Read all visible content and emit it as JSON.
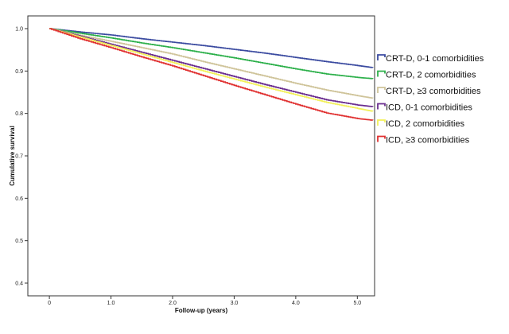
{
  "chart_data": {
    "type": "line",
    "title": "",
    "xlabel": "Follow-up (years)",
    "ylabel": "Cumulative survival",
    "xlim": [
      -0.35,
      5.28
    ],
    "ylim": [
      0.37,
      1.03
    ],
    "xticks": [
      0,
      1.0,
      2.0,
      3.0,
      4.0,
      5.0
    ],
    "xtick_labels": [
      "0",
      "1.0",
      "2.0",
      "3.0",
      "4.0",
      "5.0"
    ],
    "yticks": [
      0.4,
      0.5,
      0.6,
      0.7,
      0.8,
      0.9,
      1.0
    ],
    "ytick_labels": [
      "0.4",
      "0.5",
      "0.6",
      "0.7",
      "0.8",
      "0.9",
      "1.0"
    ],
    "grid": false,
    "legend_position": "right",
    "x": [
      0,
      0.5,
      1.0,
      1.5,
      2.0,
      2.5,
      3.0,
      3.5,
      4.0,
      4.5,
      5.0,
      5.25
    ],
    "series": [
      {
        "name": "CRT-D, 0-1 comorbidities",
        "color": "#3b4ba0",
        "values": [
          1.0,
          0.992,
          0.985,
          0.976,
          0.968,
          0.96,
          0.951,
          0.942,
          0.932,
          0.922,
          0.913,
          0.908
        ]
      },
      {
        "name": "CRT-D, 2 comorbidities",
        "color": "#2db04b",
        "values": [
          1.0,
          0.989,
          0.978,
          0.966,
          0.955,
          0.943,
          0.931,
          0.918,
          0.905,
          0.893,
          0.885,
          0.882
        ]
      },
      {
        "name": "CRT-D, ≥3 comorbidities",
        "color": "#cfc49a",
        "values": [
          1.0,
          0.984,
          0.97,
          0.955,
          0.94,
          0.922,
          0.905,
          0.888,
          0.871,
          0.855,
          0.842,
          0.836
        ]
      },
      {
        "name": "ICD, 0-1 comorbidities",
        "color": "#6a2d8f",
        "values": [
          1.0,
          0.982,
          0.963,
          0.944,
          0.925,
          0.906,
          0.887,
          0.868,
          0.85,
          0.832,
          0.82,
          0.816
        ]
      },
      {
        "name": "ICD, 2 comorbidities",
        "color": "#f2f05a",
        "values": [
          1.0,
          0.98,
          0.96,
          0.94,
          0.92,
          0.9,
          0.881,
          0.862,
          0.844,
          0.826,
          0.812,
          0.805
        ]
      },
      {
        "name": "ICD, ≥3 comorbidities",
        "color": "#e03030",
        "values": [
          1.0,
          0.976,
          0.955,
          0.933,
          0.912,
          0.889,
          0.866,
          0.844,
          0.822,
          0.801,
          0.788,
          0.784
        ]
      }
    ]
  }
}
